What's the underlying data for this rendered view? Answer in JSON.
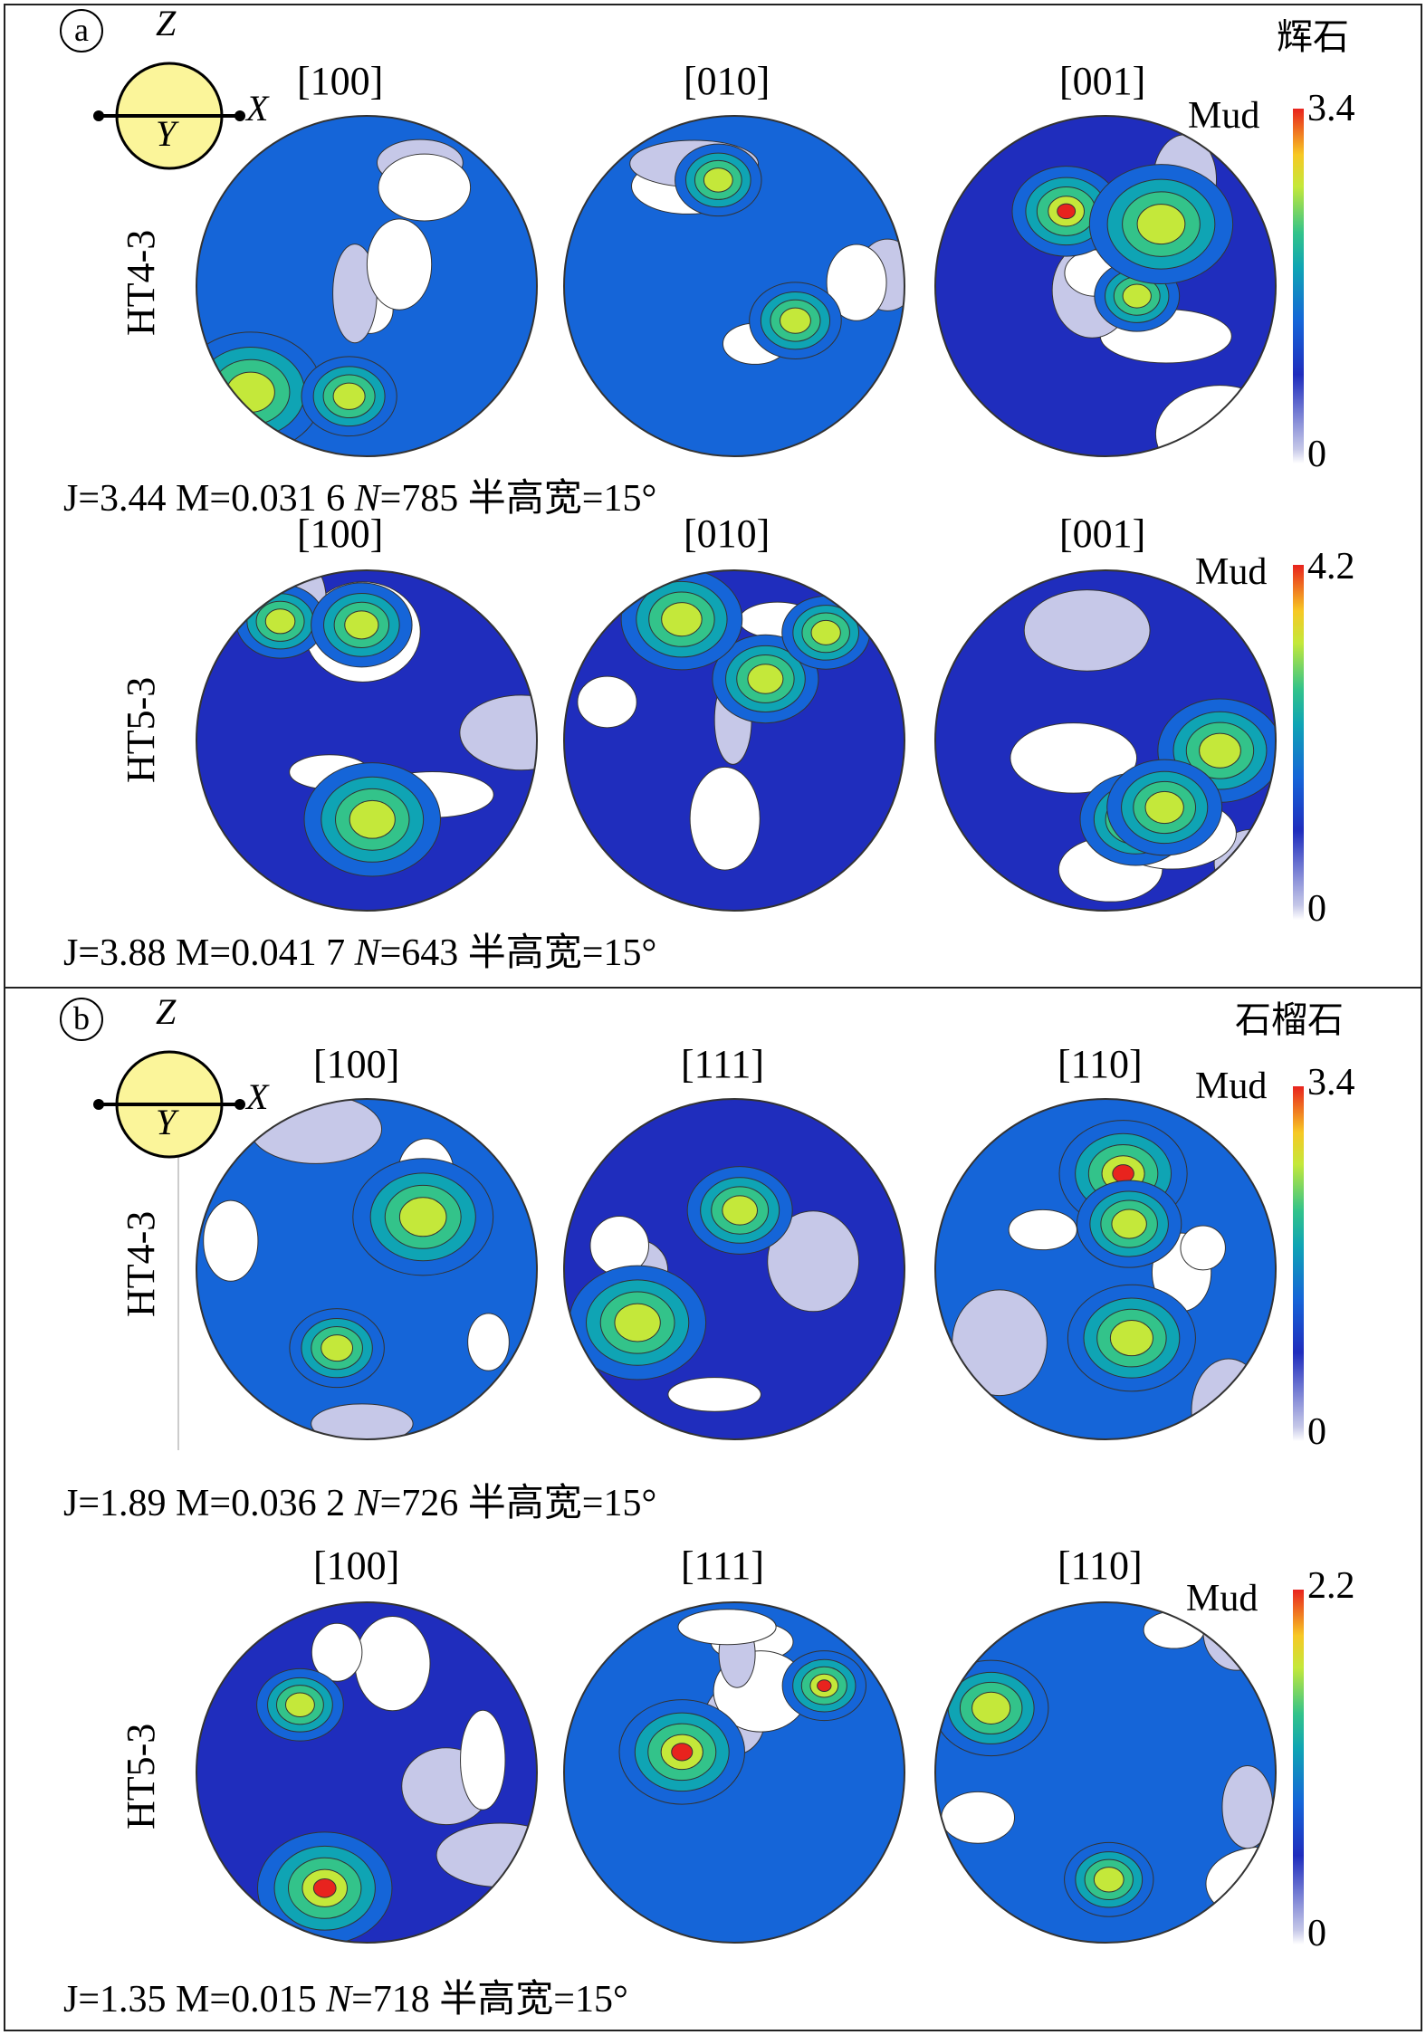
{
  "panels": [
    {
      "letter": "a",
      "mineral": "辉石",
      "axes": {
        "z": "Z",
        "x": "X",
        "y": "Y"
      },
      "rows": [
        {
          "sample": "HT4-3",
          "dirs": [
            "[100]",
            "[010]",
            "[001]"
          ],
          "scale": {
            "label": "Mud",
            "max": "3.4",
            "min": "0"
          },
          "stats_a": "J=3.44 M=0.031 6 ",
          "stats_n": "N",
          "stats_b": "=785 半高宽=15°"
        },
        {
          "sample": "HT5-3",
          "dirs": [
            "[100]",
            "[010]",
            "[001]"
          ],
          "scale": {
            "label": "Mud",
            "max": "4.2",
            "min": "0"
          },
          "stats_a": "J=3.88 M=0.041 7 ",
          "stats_n": "N",
          "stats_b": "=643 半高宽=15°"
        }
      ]
    },
    {
      "letter": "b",
      "mineral": "石榴石",
      "axes": {
        "z": "Z",
        "x": "X",
        "y": "Y"
      },
      "rows": [
        {
          "sample": "HT4-3",
          "dirs": [
            "[100]",
            "[111]",
            "[110]"
          ],
          "scale": {
            "label": "Mud",
            "max": "3.4",
            "min": "0"
          },
          "stats_a": "J=1.89 M=0.036 2 ",
          "stats_n": "N",
          "stats_b": "=726 半高宽=15°"
        },
        {
          "sample": "HT5-3",
          "dirs": [
            "[100]",
            "[111]",
            "[110]"
          ],
          "scale": {
            "label": "Mud",
            "max": "2.2",
            "min": "0"
          },
          "stats_a": "J=1.35 M=0.015 ",
          "stats_n": "N",
          "stats_b": "=718 半高宽=15°"
        }
      ]
    }
  ],
  "colors": {
    "white": "#ffffff",
    "lavender": "#c6c8e8",
    "blue": "#1f2dbd",
    "mid": "#1565d8",
    "teal": "#0fa4b4",
    "green": "#33c38a",
    "yellow": "#c4e83a",
    "red": "#e8231e"
  }
}
